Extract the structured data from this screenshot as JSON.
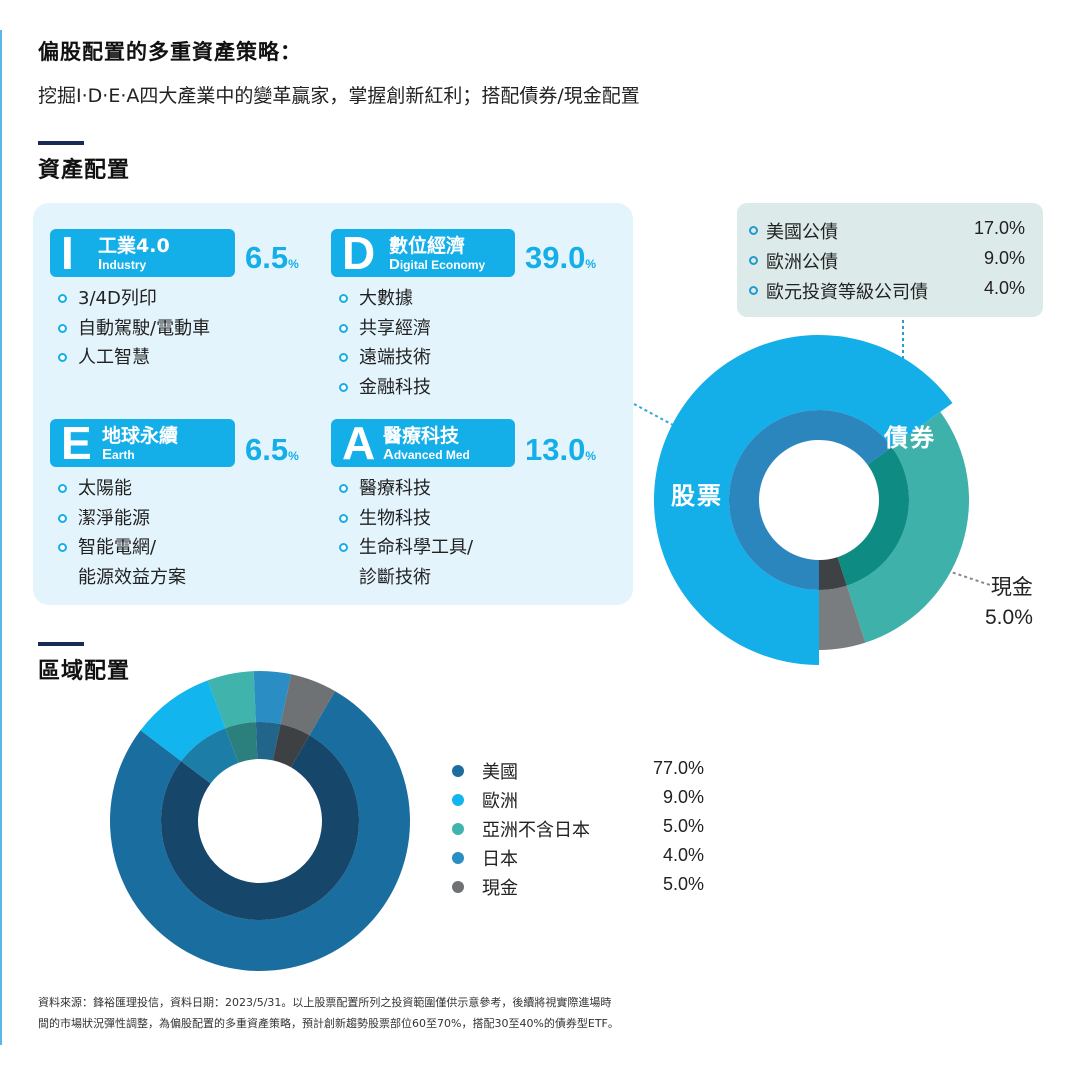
{
  "header": {
    "title": "偏股配置的多重資產策略：",
    "subtitle": "挖掘I‧D‧E‧A四大產業中的變革贏家，掌握創新紅利；搭配債券/現金配置"
  },
  "asset_section": {
    "title": "資產配置",
    "themes": [
      {
        "letter": "I",
        "name_zh": "工業4.0",
        "name_en_first": "I",
        "name_en_rest": "ndustry",
        "percent": "6.5",
        "items": [
          "3/4D列印",
          "自動駕駛/電動車",
          "人工智慧"
        ]
      },
      {
        "letter": "D",
        "name_zh": "數位經濟",
        "name_en_first": "D",
        "name_en_rest": "igital Economy",
        "percent": "39.0",
        "items": [
          "大數據",
          "共享經濟",
          "遠端技術",
          "金融科技"
        ]
      },
      {
        "letter": "E",
        "name_zh": "地球永續",
        "name_en_first": "E",
        "name_en_rest": "arth",
        "percent": "6.5",
        "items": [
          "太陽能",
          "潔淨能源",
          "智能電網/",
          "能源效益方案"
        ]
      },
      {
        "letter": "A",
        "name_zh": "醫療科技",
        "name_en_first": "A",
        "name_en_rest": "dvanced Med",
        "percent": "13.0",
        "items": [
          "醫療科技",
          "生物科技",
          "生命科學工具/",
          "診斷技術"
        ]
      }
    ],
    "percent_sign": "%",
    "bond_breakdown": [
      {
        "name": "美國公債",
        "value": "17.0%"
      },
      {
        "name": "歐洲公債",
        "value": "9.0%"
      },
      {
        "name": "歐元投資等級公司債",
        "value": "4.0%"
      }
    ],
    "pie_labels": {
      "stocks": "股票",
      "bonds": "債券",
      "cash": "現金",
      "cash_value": "5.0%"
    }
  },
  "region_section": {
    "title": "區域配置",
    "legend": [
      {
        "name": "美國",
        "value": "77.0%",
        "color": "#1a6d9f"
      },
      {
        "name": "歐洲",
        "value": "9.0%",
        "color": "#13b5ee"
      },
      {
        "name": "亞洲不含日本",
        "value": "5.0%",
        "color": "#3fb3ac"
      },
      {
        "name": "日本",
        "value": "4.0%",
        "color": "#2a8ec4"
      },
      {
        "name": "現金",
        "value": "5.0%",
        "color": "#6f7274"
      }
    ]
  },
  "footnote": {
    "line1": "資料來源：鋒裕匯理投信，資料日期：2023/5/31。以上股票配置所列之投資範圍僅供示意參考，後續將視實際進場時",
    "line2": "間的市場狀況彈性調整，為偏股配置的多重資產策略，預計創新趨勢股票部位60至70%，搭配30至40%的債券型ETF。"
  },
  "chart_data": [
    {
      "type": "pie",
      "title": "資產配置",
      "categories": [
        "股票",
        "債券",
        "現金"
      ],
      "values": [
        65,
        30,
        5
      ],
      "colors": [
        "#14aee9",
        "#3eb1ab",
        "#7a7d7f"
      ],
      "inner_colors": [
        "#2c86be",
        "#0e8b82",
        "#3f4244"
      ]
    },
    {
      "type": "pie",
      "title": "區域配置",
      "categories": [
        "美國",
        "歐洲",
        "亞洲不含日本",
        "日本",
        "現金"
      ],
      "values": [
        77,
        9,
        5,
        4,
        5
      ],
      "colors": [
        "#1a6d9f",
        "#13b5ee",
        "#3fb3ac",
        "#2a8ec4",
        "#6f7274"
      ],
      "inner_colors": [
        "#16466a",
        "#1c7ea6",
        "#2b7f7c",
        "#22658b",
        "#3d4143"
      ]
    }
  ]
}
